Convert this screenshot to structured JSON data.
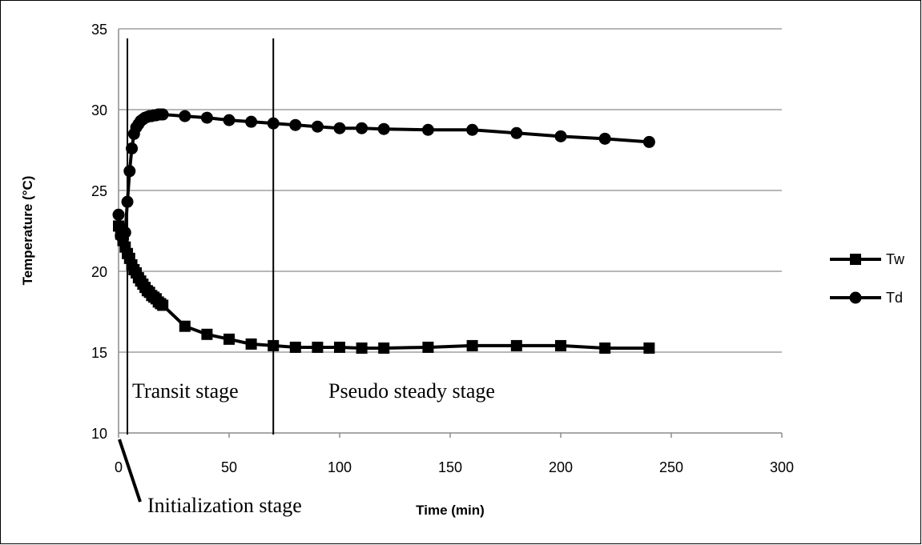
{
  "chart_data": {
    "type": "line",
    "title": "",
    "xlabel": "Time (min)",
    "ylabel": "Temperature (°C)",
    "xlim": [
      0,
      300
    ],
    "ylim": [
      10,
      35
    ],
    "xticks": [
      0,
      50,
      100,
      150,
      200,
      250,
      300
    ],
    "yticks": [
      10,
      15,
      20,
      25,
      30,
      35
    ],
    "grid": "horizontal",
    "legend_position": "right",
    "series": [
      {
        "name": "Tw",
        "marker": "square",
        "color": "#000000",
        "points": [
          [
            0,
            22.8
          ],
          [
            1,
            22.3
          ],
          [
            2,
            21.9
          ],
          [
            3,
            21.5
          ],
          [
            4,
            21.1
          ],
          [
            5,
            20.8
          ],
          [
            6,
            20.4
          ],
          [
            7,
            20.1
          ],
          [
            8,
            19.9
          ],
          [
            9,
            19.6
          ],
          [
            10,
            19.4
          ],
          [
            11,
            19.2
          ],
          [
            12,
            19.0
          ],
          [
            13,
            18.8
          ],
          [
            14,
            18.7
          ],
          [
            15,
            18.5
          ],
          [
            16,
            18.4
          ],
          [
            17,
            18.3
          ],
          [
            18,
            18.1
          ],
          [
            19,
            18.0
          ],
          [
            20,
            17.9
          ],
          [
            30,
            16.6
          ],
          [
            40,
            16.1
          ],
          [
            50,
            15.8
          ],
          [
            60,
            15.5
          ],
          [
            70,
            15.4
          ],
          [
            80,
            15.3
          ],
          [
            90,
            15.3
          ],
          [
            100,
            15.3
          ],
          [
            110,
            15.25
          ],
          [
            120,
            15.25
          ],
          [
            140,
            15.3
          ],
          [
            160,
            15.4
          ],
          [
            180,
            15.4
          ],
          [
            200,
            15.4
          ],
          [
            220,
            15.25
          ],
          [
            240,
            15.25
          ]
        ]
      },
      {
        "name": "Td",
        "marker": "circle",
        "color": "#000000",
        "points": [
          [
            0,
            23.5
          ],
          [
            1,
            22.2
          ],
          [
            2,
            22.0
          ],
          [
            3,
            22.4
          ],
          [
            4,
            24.3
          ],
          [
            5,
            26.2
          ],
          [
            6,
            27.6
          ],
          [
            7,
            28.5
          ],
          [
            8,
            28.9
          ],
          [
            9,
            29.1
          ],
          [
            10,
            29.3
          ],
          [
            11,
            29.4
          ],
          [
            12,
            29.5
          ],
          [
            13,
            29.55
          ],
          [
            14,
            29.6
          ],
          [
            15,
            29.6
          ],
          [
            16,
            29.65
          ],
          [
            17,
            29.65
          ],
          [
            18,
            29.7
          ],
          [
            19,
            29.7
          ],
          [
            20,
            29.7
          ],
          [
            30,
            29.6
          ],
          [
            40,
            29.5
          ],
          [
            50,
            29.35
          ],
          [
            60,
            29.25
          ],
          [
            70,
            29.15
          ],
          [
            80,
            29.05
          ],
          [
            90,
            28.95
          ],
          [
            100,
            28.85
          ],
          [
            110,
            28.85
          ],
          [
            120,
            28.8
          ],
          [
            140,
            28.75
          ],
          [
            160,
            28.75
          ],
          [
            180,
            28.55
          ],
          [
            200,
            28.35
          ],
          [
            220,
            28.2
          ],
          [
            240,
            28.0
          ]
        ]
      }
    ],
    "stage_lines_x": [
      4,
      70
    ],
    "annotations": {
      "transit": "Transit stage",
      "pseudo": "Pseudo steady stage",
      "init": "Initialization stage"
    }
  }
}
